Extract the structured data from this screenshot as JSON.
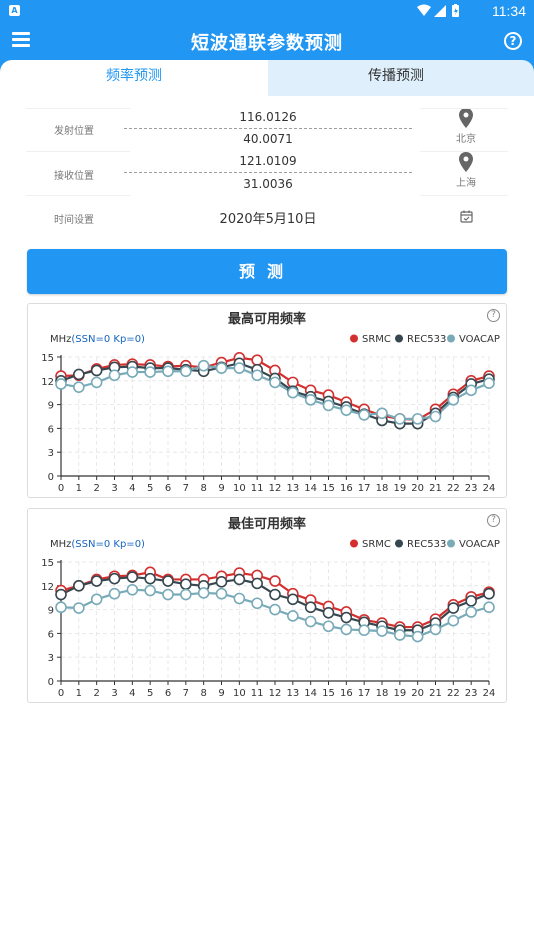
{
  "status_bar": {
    "time": "11:34",
    "app_badge": "A"
  },
  "app_bar": {
    "title": "短波通联参数预测",
    "menu_icon": "menu-icon",
    "help_icon": "help-icon",
    "help_glyph": "?"
  },
  "tabs": [
    {
      "label": "频率预测",
      "active": true
    },
    {
      "label": "传播预测",
      "active": false
    }
  ],
  "form": {
    "tx": {
      "label": "发射位置",
      "lon": "116.0126",
      "lat": "40.0071",
      "city": "北京"
    },
    "rx": {
      "label": "接收位置",
      "lon": "121.0109",
      "lat": "31.0036",
      "city": "上海"
    },
    "time": {
      "label": "时间设置",
      "value": "2020年5月10日"
    }
  },
  "predict_button": {
    "label": "预测"
  },
  "colors": {
    "accent": "#2196f3",
    "srmc": "#d32f2f",
    "rec533": "#37474f",
    "voacap": "#78aab8"
  },
  "chart_data": [
    {
      "type": "line",
      "title": "最高可用频率",
      "ylabel_prefix": "MHz",
      "ylabel_param": "(SSN=0 Kp=0)",
      "help_glyph": "?",
      "x": [
        0,
        1,
        2,
        3,
        4,
        5,
        6,
        7,
        8,
        9,
        10,
        11,
        12,
        13,
        14,
        15,
        16,
        17,
        18,
        19,
        20,
        21,
        22,
        23,
        24
      ],
      "xticks": [
        "0",
        "1",
        "2",
        "3",
        "4",
        "5",
        "6",
        "7",
        "8",
        "9",
        "10",
        "11",
        "12",
        "13",
        "14",
        "15",
        "16",
        "17",
        "18",
        "19",
        "20",
        "21",
        "22",
        "23",
        "24"
      ],
      "yticks": [
        "0",
        "3",
        "6",
        "9",
        "12",
        "15"
      ],
      "ylim": [
        0,
        15
      ],
      "legend_placement": "top-right",
      "series": [
        {
          "name": "SRMC",
          "values": [
            12.6,
            12.7,
            13.5,
            14.0,
            14.1,
            14.0,
            13.8,
            13.9,
            13.7,
            14.3,
            14.9,
            14.6,
            13.3,
            11.8,
            10.8,
            10.2,
            9.3,
            8.4,
            7.6,
            7.2,
            7.1,
            8.4,
            10.3,
            12.0,
            12.6
          ]
        },
        {
          "name": "REC533",
          "values": [
            12.0,
            12.8,
            13.3,
            13.7,
            13.8,
            13.6,
            13.6,
            13.4,
            13.2,
            13.7,
            14.2,
            13.4,
            12.3,
            10.7,
            10.0,
            9.4,
            8.7,
            7.8,
            7.0,
            6.6,
            6.6,
            7.9,
            9.9,
            11.6,
            12.2
          ]
        },
        {
          "name": "VOACAP",
          "values": [
            11.6,
            11.2,
            11.8,
            12.7,
            13.1,
            13.1,
            13.2,
            13.2,
            13.9,
            13.6,
            13.6,
            12.7,
            11.8,
            10.5,
            9.6,
            8.9,
            8.3,
            7.7,
            7.9,
            7.2,
            7.2,
            7.5,
            9.6,
            10.8,
            11.7
          ]
        }
      ]
    },
    {
      "type": "line",
      "title": "最佳可用频率",
      "ylabel_prefix": "MHz",
      "ylabel_param": "(SSN=0 Kp=0)",
      "help_glyph": "?",
      "x": [
        0,
        1,
        2,
        3,
        4,
        5,
        6,
        7,
        8,
        9,
        10,
        11,
        12,
        13,
        14,
        15,
        16,
        17,
        18,
        19,
        20,
        21,
        22,
        23,
        24
      ],
      "xticks": [
        "0",
        "1",
        "2",
        "3",
        "4",
        "5",
        "6",
        "7",
        "8",
        "9",
        "10",
        "11",
        "12",
        "13",
        "14",
        "15",
        "16",
        "17",
        "18",
        "19",
        "20",
        "21",
        "22",
        "23",
        "24"
      ],
      "yticks": [
        "0",
        "3",
        "6",
        "9",
        "12",
        "15"
      ],
      "ylim": [
        0,
        15
      ],
      "legend_placement": "top-right",
      "series": [
        {
          "name": "SRMC",
          "values": [
            11.4,
            12.0,
            12.8,
            13.2,
            13.3,
            13.7,
            12.8,
            12.8,
            12.8,
            13.2,
            13.6,
            13.3,
            12.6,
            11.0,
            10.2,
            9.4,
            8.7,
            7.7,
            7.3,
            6.8,
            6.8,
            7.8,
            9.6,
            10.6,
            11.2
          ]
        },
        {
          "name": "REC533",
          "values": [
            10.9,
            12.0,
            12.6,
            12.9,
            13.1,
            12.9,
            12.6,
            12.2,
            12.0,
            12.5,
            12.8,
            12.3,
            10.9,
            10.3,
            9.3,
            8.6,
            8.0,
            7.4,
            6.9,
            6.4,
            6.4,
            7.3,
            9.2,
            10.1,
            11.0
          ]
        },
        {
          "name": "VOACAP",
          "values": [
            9.3,
            9.2,
            10.3,
            11.0,
            11.5,
            11.4,
            10.9,
            10.9,
            11.1,
            11.0,
            10.4,
            9.8,
            9.0,
            8.2,
            7.5,
            6.9,
            6.5,
            6.4,
            6.3,
            5.8,
            5.6,
            6.5,
            7.6,
            8.7,
            9.3
          ]
        }
      ]
    }
  ]
}
